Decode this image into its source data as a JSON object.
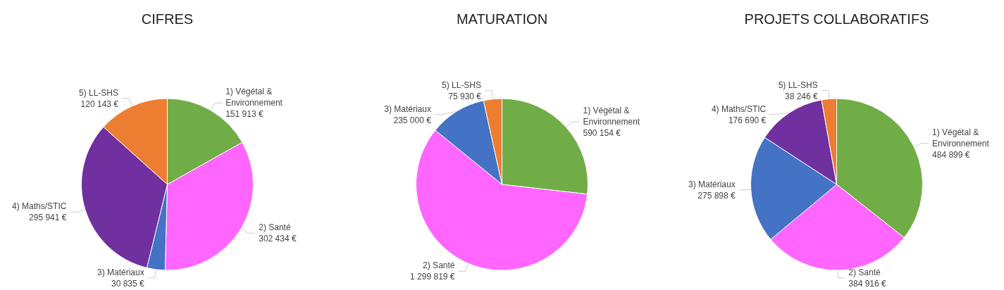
{
  "chart_data": [
    {
      "type": "pie",
      "title": "CIFRES",
      "categories": [
        "1) Végétal & Environnement",
        "2) Santé",
        "3) Matériaux",
        "4) Maths/STIC",
        "5) LL-SHS"
      ],
      "values": [
        151913,
        302434,
        30835,
        295941,
        120143
      ],
      "value_labels": [
        "151 913 €",
        "302 434 €",
        "30 835 €",
        "295 941 €",
        "120 143 €"
      ],
      "colors": [
        "#70ad47",
        "#ff66ff",
        "#4472c4",
        "#7030a0",
        "#ed7d31"
      ]
    },
    {
      "type": "pie",
      "title": "MATURATION",
      "categories": [
        "1) Végétal & Environnement",
        "2) Santé",
        "3) Matériaux",
        "5) LL-SHS"
      ],
      "values": [
        590154,
        1299819,
        235000,
        75930
      ],
      "value_labels": [
        "590 154 €",
        "1 299 819 €",
        "235 000 €",
        "75 930 €"
      ],
      "colors": [
        "#70ad47",
        "#ff66ff",
        "#4472c4",
        "#ed7d31"
      ]
    },
    {
      "type": "pie",
      "title": "PROJETS COLLABORATIFS",
      "categories": [
        "1) Végétal & Environnement",
        "2) Santé",
        "3) Matériaux",
        "4) Maths/STIC",
        "5) LL-SHS"
      ],
      "values": [
        484899,
        384916,
        275898,
        176690,
        38246
      ],
      "value_labels": [
        "484 899 €",
        "384 916 €",
        "275 898 €",
        "176 690 €",
        "38 246 €"
      ],
      "colors": [
        "#70ad47",
        "#ff66ff",
        "#4472c4",
        "#7030a0",
        "#ed7d31"
      ]
    }
  ]
}
